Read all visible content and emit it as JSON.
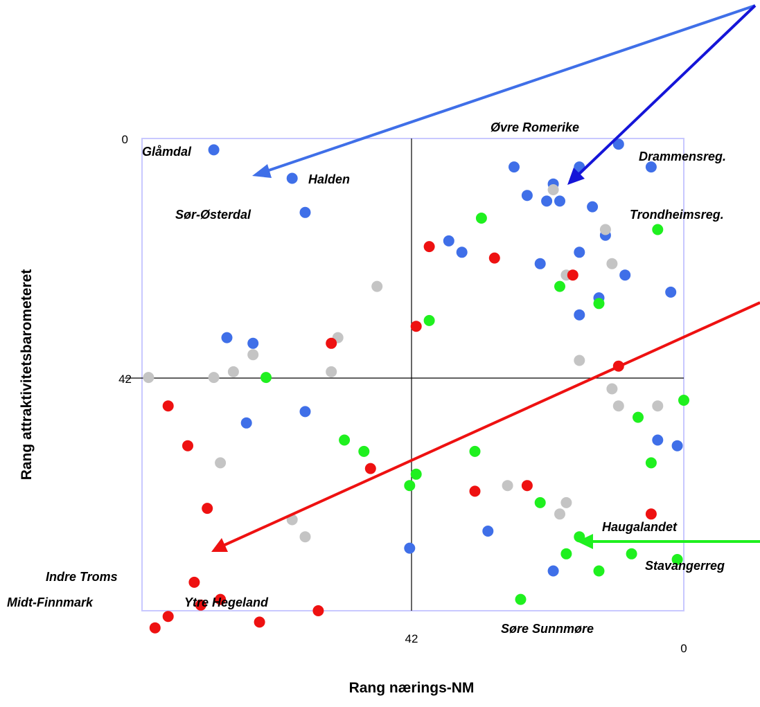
{
  "chart_data": {
    "type": "scatter",
    "title": "",
    "xlabel": "Rang nærings-NM",
    "ylabel": "Rang attraktivitetsbarometeret",
    "xlim": [
      83,
      0
    ],
    "ylim": [
      0,
      83
    ],
    "axis_ticks": {
      "x": [
        "42",
        "0"
      ],
      "y": [
        "0",
        "42"
      ]
    },
    "crosshair": {
      "x": 42,
      "y": 42
    },
    "colors": {
      "blue": "#3f6fe8",
      "green": "#1ff01f",
      "red": "#ee1111",
      "grey": "#c4c4c4"
    },
    "series": [
      {
        "color": "blue",
        "points": [
          [
            72,
            2
          ],
          [
            60,
            7
          ],
          [
            58,
            13
          ],
          [
            12,
            17
          ],
          [
            10,
            1
          ],
          [
            16,
            5
          ],
          [
            5,
            5
          ],
          [
            26,
            5
          ],
          [
            24,
            10
          ],
          [
            20,
            8
          ],
          [
            14,
            12
          ],
          [
            19,
            11
          ],
          [
            21,
            11
          ],
          [
            36,
            18
          ],
          [
            34,
            20
          ],
          [
            22,
            22
          ],
          [
            16,
            20
          ],
          [
            9,
            24
          ],
          [
            13,
            28
          ],
          [
            16,
            31
          ],
          [
            2,
            27
          ],
          [
            66,
            36
          ],
          [
            70,
            35
          ],
          [
            67,
            50
          ],
          [
            58,
            48
          ],
          [
            1,
            54
          ],
          [
            4,
            53
          ],
          [
            30,
            69
          ],
          [
            42,
            72
          ],
          [
            20,
            76
          ]
        ]
      },
      {
        "color": "green",
        "points": [
          [
            4,
            16
          ],
          [
            31,
            14
          ],
          [
            19,
            26
          ],
          [
            13,
            29
          ],
          [
            39,
            32
          ],
          [
            64,
            42
          ],
          [
            0,
            46
          ],
          [
            7,
            49
          ],
          [
            52,
            53
          ],
          [
            5,
            57
          ],
          [
            32,
            55
          ],
          [
            41,
            59
          ],
          [
            42,
            61
          ],
          [
            49,
            55
          ],
          [
            22,
            64
          ],
          [
            16,
            70
          ],
          [
            18,
            73
          ],
          [
            8,
            73
          ],
          [
            1,
            74
          ],
          [
            13,
            76
          ],
          [
            25,
            81
          ]
        ]
      },
      {
        "color": "grey",
        "points": [
          [
            20,
            9
          ],
          [
            12,
            16
          ],
          [
            11,
            22
          ],
          [
            18,
            24
          ],
          [
            47,
            26
          ],
          [
            53,
            35
          ],
          [
            16,
            39
          ],
          [
            66,
            38
          ],
          [
            69,
            41
          ],
          [
            54,
            41
          ],
          [
            11,
            44
          ],
          [
            72,
            42
          ],
          [
            82,
            42
          ],
          [
            10,
            47
          ],
          [
            4,
            47
          ],
          [
            71,
            57
          ],
          [
            18,
            64
          ],
          [
            27,
            61
          ],
          [
            19,
            66
          ],
          [
            60,
            67
          ],
          [
            58,
            70
          ]
        ]
      },
      {
        "color": "red",
        "points": [
          [
            39,
            19
          ],
          [
            29,
            21
          ],
          [
            17,
            24
          ],
          [
            41,
            33
          ],
          [
            54,
            36
          ],
          [
            10,
            40
          ],
          [
            79,
            47
          ],
          [
            73,
            65
          ],
          [
            48,
            58
          ],
          [
            24,
            61
          ],
          [
            32,
            62
          ],
          [
            76,
            54
          ],
          [
            5,
            66
          ],
          [
            79,
            84
          ],
          [
            74,
            82
          ],
          [
            71,
            81
          ],
          [
            75,
            78
          ],
          [
            81,
            86
          ],
          [
            56,
            83
          ],
          [
            65,
            85
          ]
        ]
      }
    ],
    "labels": [
      "Øvre Romerike",
      "Glåmdal",
      "Drammensreg.",
      "Halden",
      "Sør-Østerdal",
      "Trondheimsreg.",
      "Haugalandet",
      "Stavangerreg",
      "Indre Troms",
      "Midt-Finnmark",
      "Ytre Hegeland",
      "Søre Sunnmøre"
    ],
    "arrows": [
      {
        "color": "#3f6fe8",
        "direction": "top-right to upper-left"
      },
      {
        "color": "#1515d8",
        "direction": "top-right to upper-right quadrant"
      },
      {
        "color": "#ee1111",
        "direction": "right to lower-left"
      },
      {
        "color": "#1ff01f",
        "direction": "right edge leftward at Haugalandet"
      }
    ]
  }
}
